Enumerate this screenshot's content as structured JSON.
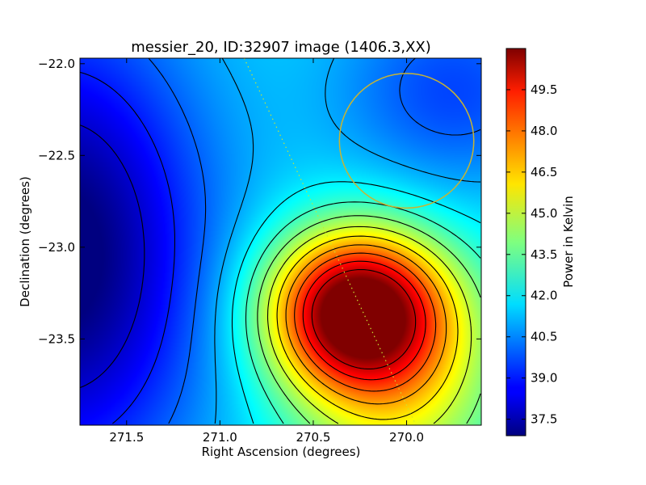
{
  "chart_data": {
    "type": "heatmap",
    "title": "messier_20, ID:32907 image (1406.3,XX)",
    "xlabel": "Right Ascension (degrees)",
    "ylabel": "Declination (degrees)",
    "colorbar_label": "Power in Kelvin",
    "xlim": [
      271.75,
      269.6
    ],
    "ylim": [
      -23.97,
      -21.97
    ],
    "x_ticks": [
      271.5,
      271.0,
      270.5,
      270.0
    ],
    "x_tick_labels": [
      "271.5",
      "271.0",
      "270.5",
      "270.0"
    ],
    "y_ticks": [
      -22.0,
      -22.5,
      -23.0,
      -23.5
    ],
    "y_tick_labels": [
      "−22.0",
      "−22.5",
      "−23.0",
      "−23.5"
    ],
    "colorbar_range": [
      36.9,
      51.0
    ],
    "colorbar_ticks": [
      37.5,
      39.0,
      40.5,
      42.0,
      43.5,
      45.0,
      46.5,
      48.0,
      49.5
    ],
    "colorbar_tick_labels": [
      "37.5",
      "39.0",
      "40.5",
      "42.0",
      "43.5",
      "45.0",
      "46.5",
      "48.0",
      "49.5"
    ],
    "colormap": "jet",
    "contour_color": "#000000",
    "contour_levels": [
      38.0,
      39.0,
      40.0,
      41.0,
      42.0,
      43.0,
      44.0,
      45.0,
      46.0,
      47.0,
      48.0,
      49.0,
      50.0
    ],
    "field": {
      "base": 41.8,
      "components": [
        {
          "ra": 270.27,
          "dec": -23.34,
          "amp": 9.4,
          "sigma_ra": 0.33,
          "sigma_dec": 0.3
        },
        {
          "ra": 270.05,
          "dec": -23.75,
          "amp": 3.4,
          "sigma_ra": 0.4,
          "sigma_dec": 0.45
        },
        {
          "ra": 271.85,
          "dec": -23.05,
          "amp": -5.3,
          "sigma_ra": 0.55,
          "sigma_dec": 0.9
        },
        {
          "ra": 269.75,
          "dec": -22.15,
          "amp": -2.2,
          "sigma_ra": 0.45,
          "sigma_dec": 0.4
        }
      ]
    },
    "overlay_circle": {
      "ra": 270.0,
      "dec": -22.42,
      "radius_deg": 0.36,
      "color": "#c8b432"
    },
    "overlay_line": {
      "points": [
        [
          270.87,
          -21.97
        ],
        [
          269.95,
          -23.97
        ]
      ],
      "color": "#c8e632",
      "style": "dotted"
    },
    "grid": false,
    "legend": "none"
  }
}
